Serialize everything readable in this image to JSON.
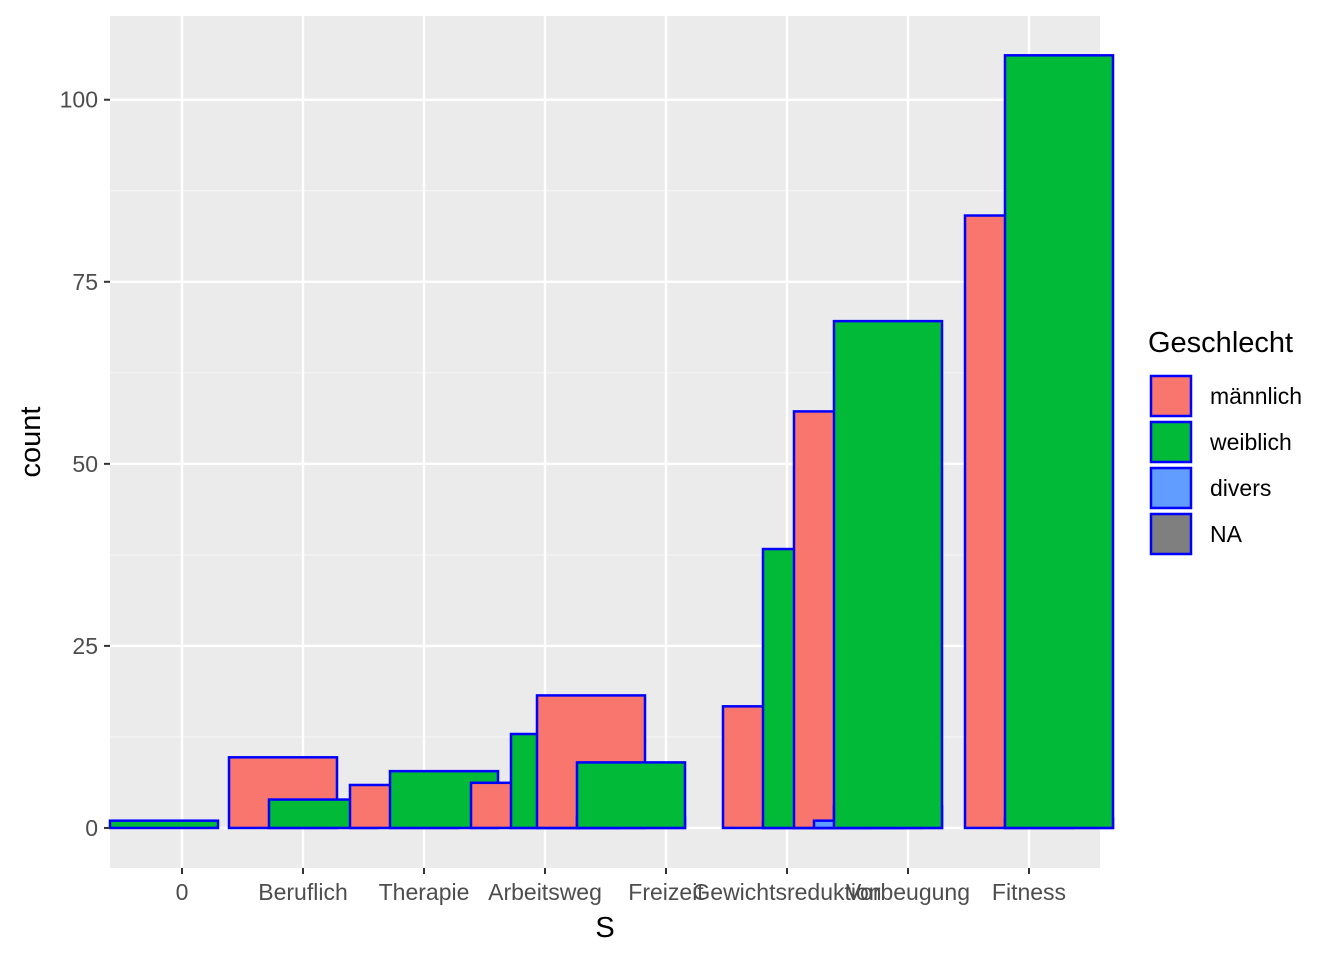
{
  "chart_data": {
    "type": "bar",
    "xlabel": "S",
    "ylabel": "count",
    "ylim": [
      -5.5,
      111.5
    ],
    "yticks": [
      0,
      25,
      50,
      75,
      100
    ],
    "categories": [
      "0",
      "Beruflich",
      "Therapie",
      "Arbeitsweg",
      "Freizeit",
      "Gewichtsreduktion",
      "Vorbeugung",
      "Fitness"
    ],
    "grid": true,
    "legend": {
      "title": "Geschlecht",
      "position": "right",
      "entries": [
        "männlich",
        "weiblich",
        "divers",
        "NA"
      ]
    },
    "bar_outline_color": "#0000ff",
    "background_color": "#ebebeb",
    "series": [
      {
        "name": "männlich",
        "color": "#f8766d",
        "values": [
          0,
          9.7,
          5.9,
          6.2,
          18.2,
          16.7,
          57.2,
          84.1
        ]
      },
      {
        "name": "weiblich",
        "color": "#00ba38",
        "values": [
          1.0,
          3.9,
          7.8,
          12.9,
          9.0,
          38.3,
          69.6,
          106.1
        ]
      },
      {
        "name": "divers",
        "color": "#619cff",
        "values": [
          0,
          0,
          0,
          0,
          0,
          0,
          1.0,
          0
        ]
      },
      {
        "name": "NA",
        "color": "#7f7f7f",
        "values": [
          0,
          0,
          0,
          0,
          1.4,
          0.8,
          3.0,
          1.3
        ]
      }
    ]
  }
}
